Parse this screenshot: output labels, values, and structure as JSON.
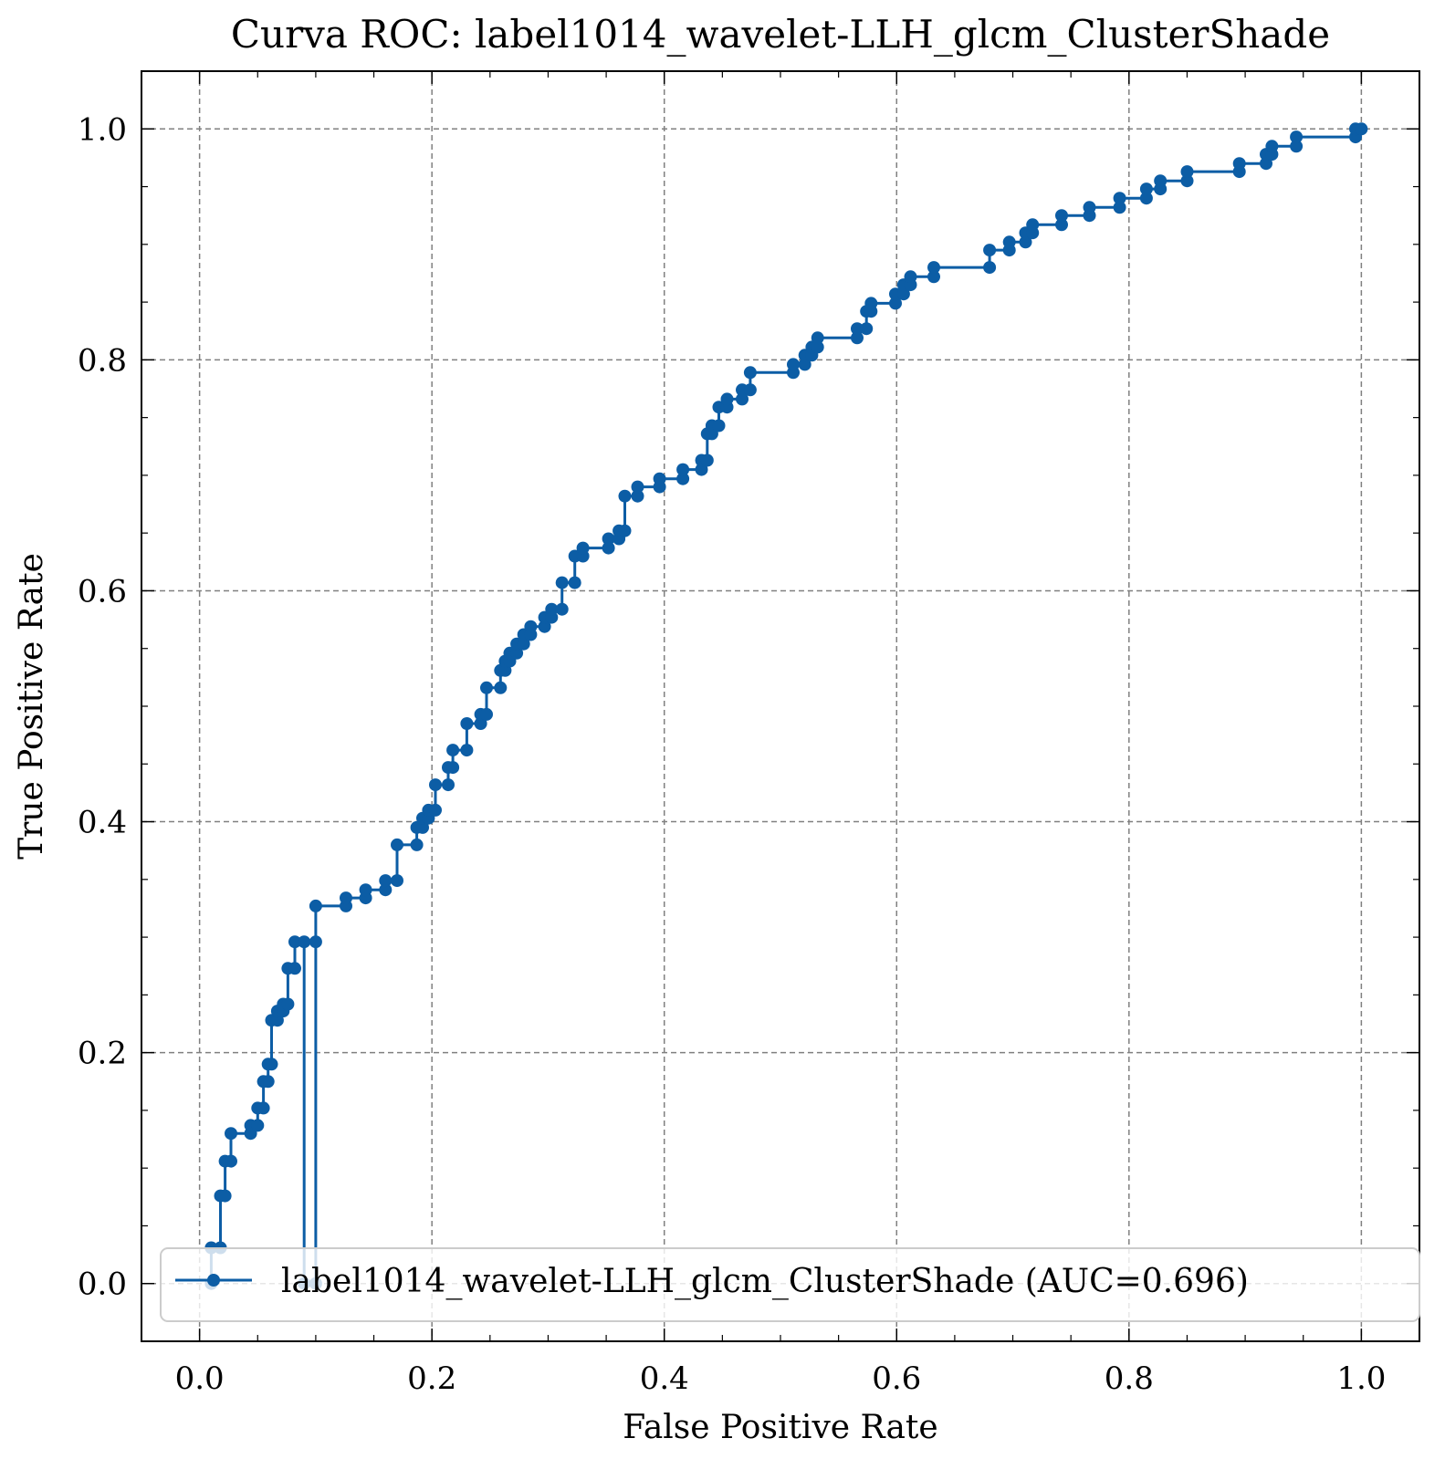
{
  "chart_data": {
    "type": "line",
    "title": "Curva ROC: label1014_wavelet-LLH_glcm_ClusterShade",
    "xlabel": "False Positive Rate",
    "ylabel": "True Positive Rate",
    "xlim": [
      -0.05,
      1.05
    ],
    "ylim": [
      -0.05,
      1.05
    ],
    "xticks": [
      0.0,
      0.2,
      0.4,
      0.6,
      0.8,
      1.0
    ],
    "yticks": [
      0.0,
      0.2,
      0.4,
      0.6,
      0.8,
      1.0
    ],
    "xtick_labels": [
      "0.0",
      "0.2",
      "0.4",
      "0.6",
      "0.8",
      "1.0"
    ],
    "ytick_labels": [
      "0.0",
      "0.2",
      "0.4",
      "0.6",
      "0.8",
      "1.0"
    ],
    "grid": true,
    "legend_position": "lower-right",
    "series": [
      {
        "name": "label1014_wavelet-LLH_glcm_ClusterShade (AUC=0.696)",
        "color": "#0c5da5",
        "x": [
          0.01,
          0.01,
          0.018,
          0.018,
          0.022,
          0.022,
          0.027,
          0.027,
          0.044,
          0.044,
          0.05,
          0.05,
          0.055,
          0.055,
          0.059,
          0.059,
          0.062,
          0.062,
          0.067,
          0.067,
          0.072,
          0.072,
          0.076,
          0.076,
          0.082,
          0.082,
          0.09,
          0.09,
          0.1,
          0.1,
          0.1,
          0.126,
          0.126,
          0.143,
          0.143,
          0.16,
          0.16,
          0.17,
          0.17,
          0.187,
          0.187,
          0.192,
          0.192,
          0.197,
          0.197,
          0.203,
          0.203,
          0.214,
          0.214,
          0.218,
          0.218,
          0.23,
          0.23,
          0.242,
          0.242,
          0.247,
          0.247,
          0.259,
          0.259,
          0.263,
          0.263,
          0.267,
          0.267,
          0.273,
          0.273,
          0.279,
          0.279,
          0.285,
          0.285,
          0.297,
          0.297,
          0.303,
          0.303,
          0.312,
          0.312,
          0.323,
          0.323,
          0.33,
          0.33,
          0.352,
          0.352,
          0.361,
          0.361,
          0.366,
          0.366,
          0.377,
          0.377,
          0.396,
          0.396,
          0.416,
          0.416,
          0.432,
          0.432,
          0.437,
          0.437,
          0.441,
          0.441,
          0.447,
          0.447,
          0.454,
          0.454,
          0.467,
          0.467,
          0.474,
          0.474,
          0.511,
          0.511,
          0.521,
          0.521,
          0.527,
          0.527,
          0.532,
          0.532,
          0.566,
          0.566,
          0.574,
          0.574,
          0.578,
          0.578,
          0.599,
          0.599,
          0.606,
          0.606,
          0.612,
          0.612,
          0.632,
          0.632,
          0.68,
          0.68,
          0.697,
          0.697,
          0.711,
          0.711,
          0.717,
          0.717,
          0.742,
          0.742,
          0.766,
          0.766,
          0.792,
          0.792,
          0.815,
          0.815,
          0.827,
          0.827,
          0.85,
          0.85,
          0.895,
          0.895,
          0.918,
          0.918,
          0.923,
          0.923,
          0.944,
          0.944,
          0.995,
          0.995,
          1.0
        ],
        "y": [
          0.0,
          0.031,
          0.031,
          0.076,
          0.076,
          0.106,
          0.106,
          0.13,
          0.13,
          0.137,
          0.137,
          0.152,
          0.152,
          0.175,
          0.175,
          0.19,
          0.19,
          0.228,
          0.228,
          0.236,
          0.236,
          0.242,
          0.242,
          0.273,
          0.273,
          0.296,
          0.296,
          0.0,
          0.0,
          0.296,
          0.327,
          0.327,
          0.334,
          0.334,
          0.341,
          0.341,
          0.349,
          0.349,
          0.38,
          0.38,
          0.395,
          0.395,
          0.403,
          0.403,
          0.41,
          0.41,
          0.432,
          0.432,
          0.447,
          0.447,
          0.462,
          0.462,
          0.485,
          0.485,
          0.493,
          0.493,
          0.516,
          0.516,
          0.531,
          0.531,
          0.539,
          0.539,
          0.546,
          0.546,
          0.554,
          0.554,
          0.562,
          0.562,
          0.569,
          0.569,
          0.577,
          0.577,
          0.584,
          0.584,
          0.607,
          0.607,
          0.63,
          0.63,
          0.637,
          0.637,
          0.645,
          0.645,
          0.652,
          0.652,
          0.682,
          0.682,
          0.69,
          0.69,
          0.697,
          0.697,
          0.705,
          0.705,
          0.713,
          0.713,
          0.736,
          0.736,
          0.743,
          0.743,
          0.759,
          0.759,
          0.766,
          0.766,
          0.774,
          0.774,
          0.789,
          0.789,
          0.796,
          0.796,
          0.804,
          0.804,
          0.811,
          0.811,
          0.819,
          0.819,
          0.827,
          0.827,
          0.842,
          0.842,
          0.849,
          0.849,
          0.857,
          0.857,
          0.865,
          0.865,
          0.872,
          0.872,
          0.88,
          0.88,
          0.895,
          0.895,
          0.902,
          0.902,
          0.91,
          0.91,
          0.917,
          0.917,
          0.925,
          0.925,
          0.932,
          0.932,
          0.94,
          0.94,
          0.948,
          0.948,
          0.955,
          0.955,
          0.963,
          0.963,
          0.97,
          0.97,
          0.978,
          0.978,
          0.985,
          0.985,
          0.993,
          0.993,
          1.0,
          1.0
        ]
      }
    ]
  }
}
